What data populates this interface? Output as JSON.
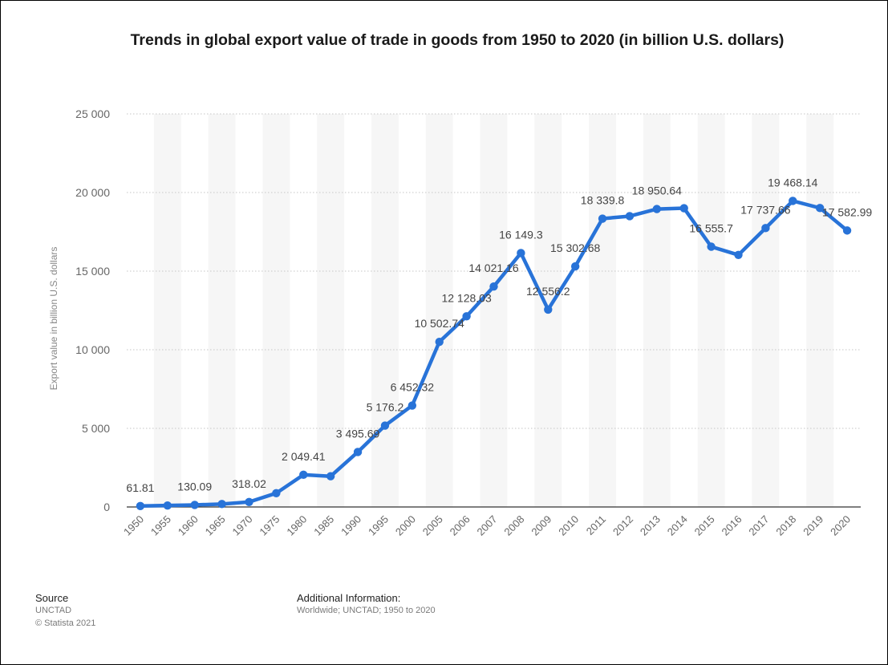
{
  "chart_data": {
    "type": "line",
    "title": "Trends in global export value of trade in goods from 1950 to 2020 (in billion U.S. dollars)",
    "xlabel": "",
    "ylabel": "Export value in billion U.S. dollars",
    "ylim": [
      0,
      25000
    ],
    "yticks": [
      0,
      5000,
      10000,
      15000,
      20000,
      25000
    ],
    "ytick_labels": [
      "0",
      "5 000",
      "10 000",
      "15 000",
      "20 000",
      "25 000"
    ],
    "grid": "horizontal dotted",
    "categories": [
      "1950",
      "1955",
      "1960",
      "1965",
      "1970",
      "1975",
      "1980",
      "1985",
      "1990",
      "1995",
      "2000",
      "2005",
      "2006",
      "2007",
      "2008",
      "2009",
      "2010",
      "2011",
      "2012",
      "2013",
      "2014",
      "2015",
      "2016",
      "2017",
      "2018",
      "2019",
      "2020"
    ],
    "values": [
      61.81,
      93,
      130.09,
      186,
      318.02,
      877,
      2049.41,
      1954,
      3495.69,
      5176.2,
      6452.32,
      10502.74,
      12128.03,
      14021.16,
      16149.3,
      12556.2,
      15302.68,
      18339.8,
      18496,
      18950.64,
      19004,
      16555.7,
      16030,
      17737.66,
      19468.14,
      19014,
      17582.99
    ],
    "data_labels": [
      {
        "index": 0,
        "text": "61.81"
      },
      {
        "index": 2,
        "text": "130.09"
      },
      {
        "index": 4,
        "text": "318.02"
      },
      {
        "index": 6,
        "text": "2 049.41"
      },
      {
        "index": 8,
        "text": "3 495.69"
      },
      {
        "index": 9,
        "text": "5 176.2"
      },
      {
        "index": 10,
        "text": "6 452.32"
      },
      {
        "index": 11,
        "text": "10 502.74"
      },
      {
        "index": 12,
        "text": "12 128.03"
      },
      {
        "index": 13,
        "text": "14 021.16"
      },
      {
        "index": 14,
        "text": "16 149.3"
      },
      {
        "index": 15,
        "text": "12 556.2"
      },
      {
        "index": 16,
        "text": "15 302.68"
      },
      {
        "index": 17,
        "text": "18 339.8"
      },
      {
        "index": 19,
        "text": "18 950.64"
      },
      {
        "index": 21,
        "text": "16 555.7"
      },
      {
        "index": 23,
        "text": "17 737.66"
      },
      {
        "index": 24,
        "text": "19 468.14"
      },
      {
        "index": 26,
        "text": "17 582.99"
      }
    ],
    "colors": {
      "line": "#2873d8",
      "band": "#f6f6f6",
      "grid": "#c6c6c6",
      "axis": "#333333",
      "tick_text": "#666666",
      "label_text": "#444444"
    }
  },
  "footer": {
    "source_heading": "Source",
    "source_lines": [
      "UNCTAD",
      "© Statista 2021"
    ],
    "additional_heading": "Additional Information:",
    "additional_text": "Worldwide; UNCTAD; 1950 to 2020"
  }
}
